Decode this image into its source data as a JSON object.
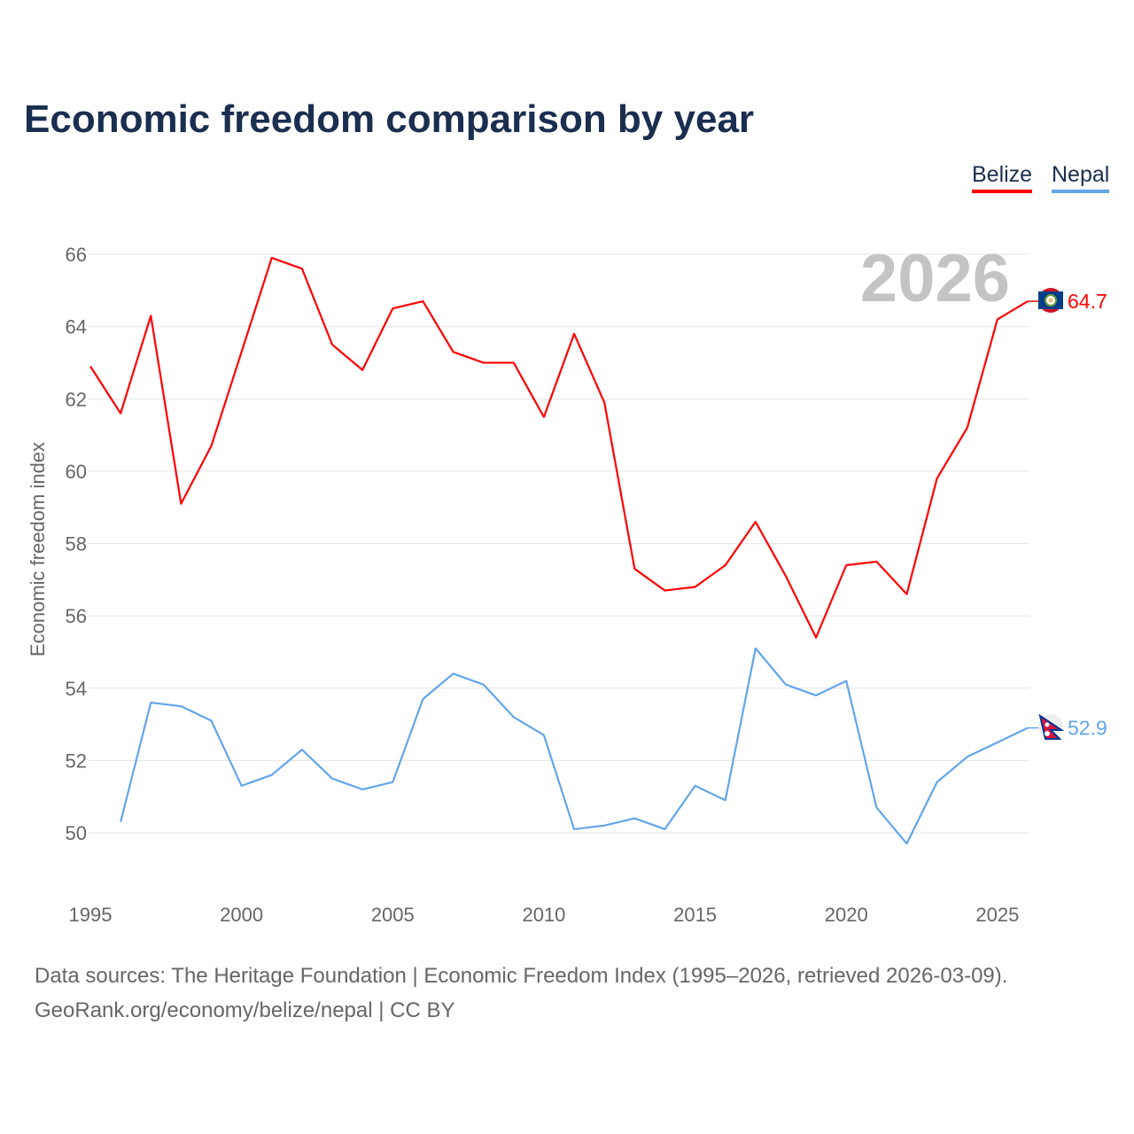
{
  "chart_data": {
    "type": "line",
    "title": "Economic freedom comparison by year",
    "xlabel": "",
    "ylabel": "Economic freedom index",
    "xlim": [
      1995,
      2026
    ],
    "ylim": [
      49,
      66
    ],
    "yticks": [
      50,
      52,
      54,
      56,
      58,
      60,
      62,
      64,
      66
    ],
    "xticks": [
      1995,
      2000,
      2005,
      2010,
      2015,
      2020,
      2025
    ],
    "grid": true,
    "legend_position": "top-right",
    "year_watermark": "2026",
    "series": [
      {
        "name": "Belize",
        "color": "#ff0000",
        "end_label": "64.7",
        "x": [
          1995,
          1996,
          1997,
          1998,
          1999,
          2000,
          2001,
          2002,
          2003,
          2004,
          2005,
          2006,
          2007,
          2008,
          2009,
          2010,
          2011,
          2012,
          2013,
          2014,
          2015,
          2016,
          2017,
          2018,
          2019,
          2020,
          2021,
          2022,
          2023,
          2024,
          2025,
          2026
        ],
        "y": [
          62.9,
          61.6,
          64.3,
          59.1,
          60.7,
          63.3,
          65.9,
          65.6,
          63.5,
          62.8,
          64.5,
          64.7,
          63.3,
          63.0,
          63.0,
          61.5,
          63.8,
          61.9,
          57.3,
          56.7,
          56.8,
          57.4,
          58.6,
          57.1,
          55.4,
          57.4,
          57.5,
          56.6,
          59.8,
          61.2,
          64.2,
          64.7
        ]
      },
      {
        "name": "Nepal",
        "color": "#63a5eb",
        "end_label": "52.9",
        "x": [
          1996,
          1997,
          1998,
          1999,
          2000,
          2001,
          2002,
          2003,
          2004,
          2005,
          2006,
          2007,
          2008,
          2009,
          2010,
          2011,
          2012,
          2013,
          2014,
          2015,
          2016,
          2017,
          2018,
          2019,
          2020,
          2021,
          2022,
          2023,
          2024,
          2025,
          2026
        ],
        "y": [
          50.3,
          53.6,
          53.5,
          53.1,
          51.3,
          51.6,
          52.3,
          51.5,
          51.2,
          51.4,
          53.7,
          54.4,
          54.1,
          53.2,
          52.7,
          50.1,
          50.2,
          50.4,
          50.1,
          51.3,
          50.9,
          55.1,
          54.1,
          53.8,
          54.2,
          50.7,
          49.7,
          51.4,
          52.1,
          52.5,
          52.9
        ]
      }
    ]
  },
  "footer": {
    "sources": "Data sources: The Heritage Foundation | Economic Freedom Index (1995–2026, retrieved 2026-03-09).",
    "credit": "GeoRank.org/economy/belize/nepal | CC BY"
  }
}
